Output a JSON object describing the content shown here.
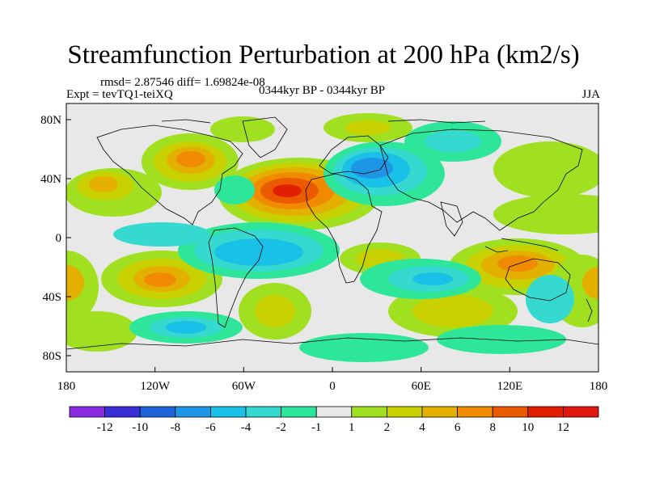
{
  "title": "Streamfunction Perturbation at 200 hPa (km2/s)",
  "stats": "rmsd= 2.87546 diff= 1.69824e-08",
  "expt": "Expt = tevTQ1-teiXQ",
  "period": "0344kyr BP - 0344kyr BP",
  "season": "JJA",
  "axes": {
    "x_ticks": [
      "180",
      "120W",
      "60W",
      "0",
      "60E",
      "120E",
      "180"
    ],
    "y_ticks": [
      "80N",
      "40N",
      "0",
      "40S",
      "80S"
    ]
  },
  "colorbar": {
    "labels": [
      "-12",
      "-10",
      "-8",
      "-6",
      "-4",
      "-2",
      "-1",
      "1",
      "2",
      "4",
      "6",
      "8",
      "10",
      "12"
    ],
    "colors": [
      "#8a2be2",
      "#3a2fd6",
      "#1e63dc",
      "#1e96e6",
      "#19c0e8",
      "#36d9cf",
      "#2ee69a",
      "#e8e8e8",
      "#a0e020",
      "#c8d000",
      "#e4b000",
      "#f08a00",
      "#ec5a00",
      "#e02000",
      "#e21810"
    ]
  }
}
